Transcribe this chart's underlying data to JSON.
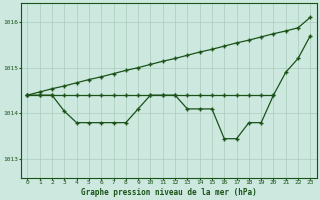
{
  "background_color": "#cce8df",
  "grid_color": "#aaccbb",
  "line_color": "#1a5218",
  "xlabel": "Graphe pression niveau de la mer (hPa)",
  "xlim": [
    -0.5,
    23.5
  ],
  "ylim": [
    1012.6,
    1016.4
  ],
  "yticks": [
    1013,
    1014,
    1015,
    1016
  ],
  "xticks": [
    0,
    1,
    2,
    3,
    4,
    5,
    6,
    7,
    8,
    9,
    10,
    11,
    12,
    13,
    14,
    15,
    16,
    17,
    18,
    19,
    20,
    21,
    22,
    23
  ],
  "series_flat_x": [
    0,
    1,
    2,
    3,
    4,
    5,
    6,
    7,
    8,
    9,
    10,
    11,
    12,
    13,
    14,
    15,
    16,
    17,
    18,
    19,
    20
  ],
  "series_flat_y": [
    1014.4,
    1014.4,
    1014.4,
    1014.4,
    1014.4,
    1014.4,
    1014.4,
    1014.4,
    1014.4,
    1014.4,
    1014.4,
    1014.4,
    1014.4,
    1014.4,
    1014.4,
    1014.4,
    1014.4,
    1014.4,
    1014.4,
    1014.4,
    1014.4
  ],
  "series_zigzag_x": [
    0,
    1,
    2,
    3,
    4,
    5,
    6,
    7,
    8,
    9,
    10,
    11,
    12,
    13,
    14,
    15,
    16,
    17,
    18,
    19,
    20,
    21,
    22,
    23
  ],
  "series_zigzag_y": [
    1014.4,
    1014.4,
    1014.4,
    1014.05,
    1013.8,
    1013.8,
    1013.8,
    1013.8,
    1013.8,
    1014.1,
    1014.4,
    1014.4,
    1014.4,
    1014.1,
    1014.1,
    1014.1,
    1013.45,
    1013.45,
    1013.8,
    1013.8,
    1014.4,
    1014.9,
    1015.2,
    1015.7
  ],
  "series_upper_x": [
    0,
    1,
    2,
    3,
    4,
    5,
    6,
    7,
    8,
    9,
    10,
    11,
    12,
    13,
    14,
    15,
    16,
    17,
    18,
    19,
    20,
    21,
    22,
    23
  ],
  "series_upper_y": [
    1014.4,
    1014.47,
    1014.54,
    1014.6,
    1014.67,
    1014.74,
    1014.8,
    1014.87,
    1014.94,
    1015.0,
    1015.07,
    1015.14,
    1015.2,
    1015.27,
    1015.34,
    1015.4,
    1015.47,
    1015.54,
    1015.6,
    1015.67,
    1015.74,
    1015.8,
    1015.87,
    1016.1
  ]
}
